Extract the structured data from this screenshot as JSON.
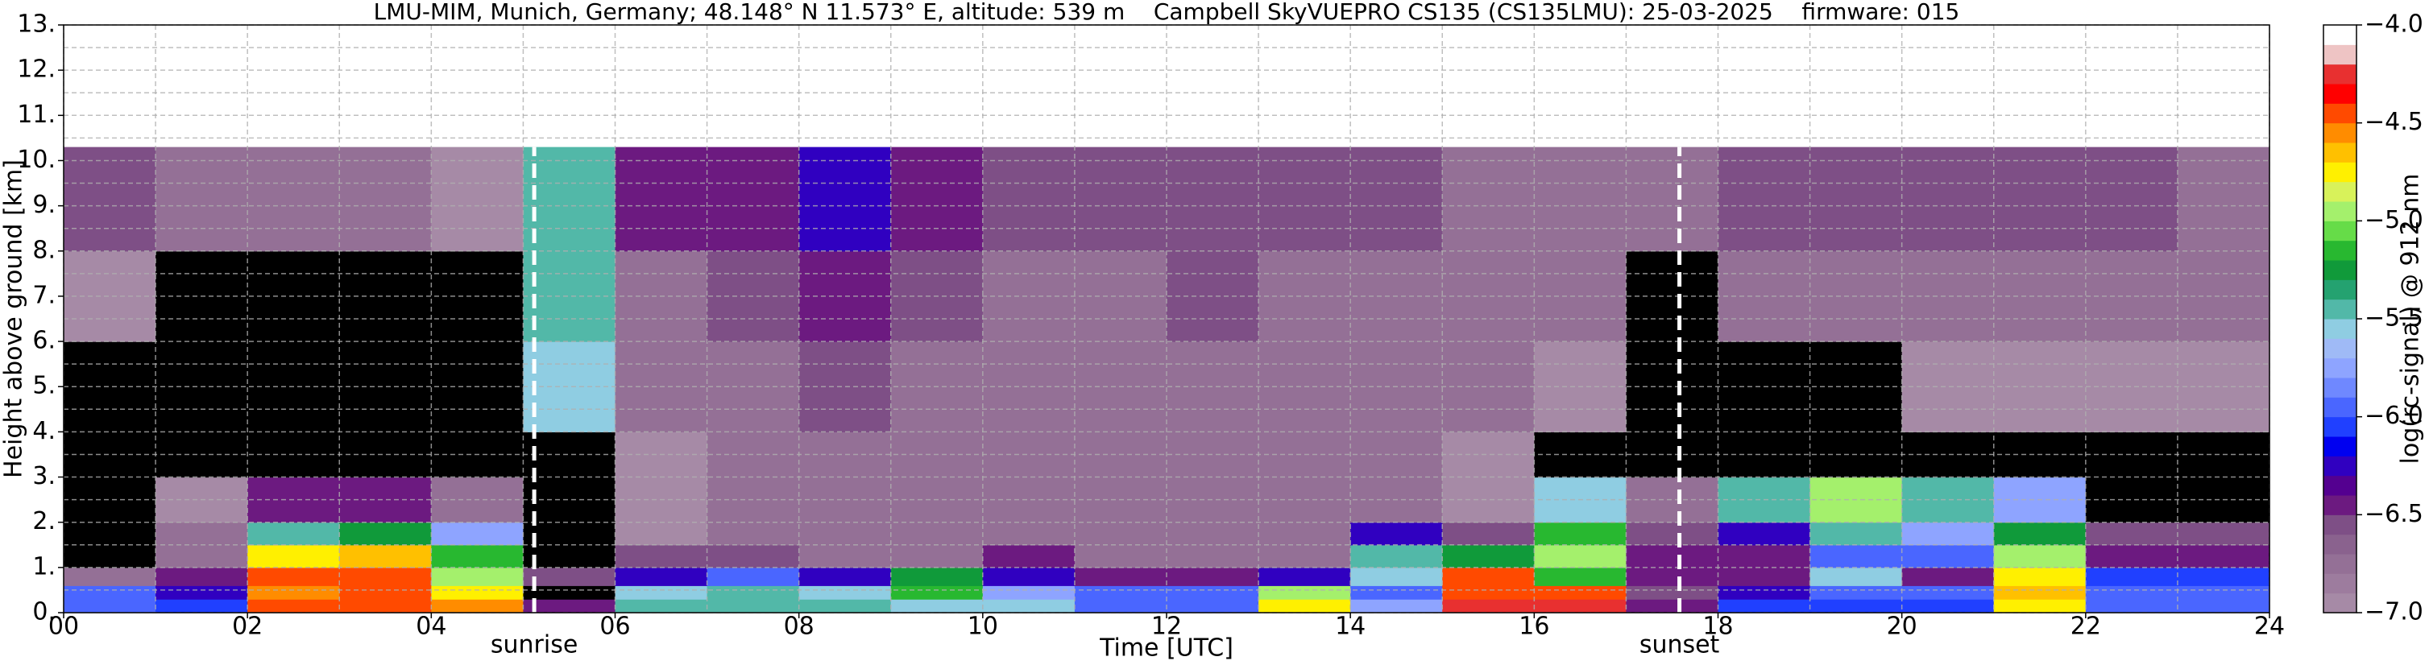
{
  "chart_data": {
    "type": "heatmap",
    "title": "LMU-MIM, Munich, Germany; 48.148° N 11.573° E, altitude: 539 m    Campbell SkyVUEPRO CS135 (CS135LMU): 25-03-2025    firmware: 015",
    "xlabel": "Time [UTC]",
    "ylabel": "Height above ground [km]",
    "xlim": [
      0,
      24
    ],
    "ylim": [
      0,
      13
    ],
    "xticks": [
      {
        "value": 0,
        "label": "00"
      },
      {
        "value": 2,
        "label": "02"
      },
      {
        "value": 4,
        "label": "04"
      },
      {
        "value": 6,
        "label": "06"
      },
      {
        "value": 8,
        "label": "08"
      },
      10,
      12,
      14,
      16,
      18,
      20,
      22,
      24
    ],
    "yticks": [
      {
        "value": 0,
        "label": "0."
      },
      {
        "value": 1,
        "label": "1."
      },
      {
        "value": 2,
        "label": "2."
      },
      {
        "value": 3,
        "label": "3."
      },
      {
        "value": 4,
        "label": "4."
      },
      {
        "value": 5,
        "label": "5."
      },
      {
        "value": 6,
        "label": "6."
      },
      {
        "value": 7,
        "label": "7."
      },
      {
        "value": 8,
        "label": "8."
      },
      {
        "value": 9,
        "label": "9."
      },
      {
        "value": 10,
        "label": "10."
      },
      {
        "value": 11,
        "label": "11."
      },
      {
        "value": 12,
        "label": "12."
      },
      {
        "value": 13,
        "label": "13."
      }
    ],
    "x_minor_grid": [
      1,
      3,
      5,
      7,
      9,
      11,
      13,
      15,
      17,
      19,
      21,
      23
    ],
    "y_minor_grid": [
      0.5,
      1.5,
      2.5,
      3.5,
      4.5,
      5.5,
      6.5,
      7.5,
      8.5,
      9.5,
      10.5,
      11.5,
      12.5
    ],
    "grid": true,
    "x_edges": [
      0,
      1,
      2,
      3,
      4,
      5,
      6,
      7,
      8,
      9,
      10,
      11,
      12,
      13,
      14,
      15,
      16,
      17,
      18,
      19,
      20,
      21,
      22,
      23,
      24
    ],
    "y_edges": [
      0,
      0.3,
      0.6,
      1.0,
      1.5,
      2.0,
      3.0,
      4.0,
      6.0,
      8.0,
      10.3
    ],
    "z": [
      [
        -6.0,
        -6.1,
        -4.5,
        -4.4,
        -4.6,
        -6.5,
        -5.4,
        -5.4,
        -5.5,
        -5.6,
        -5.6,
        -6.0,
        -6.0,
        -4.8,
        -5.8,
        -4.3,
        -4.3,
        -6.4,
        -6.1,
        -6.1,
        -6.1,
        -4.8,
        -6.0,
        -6.0
      ],
      [
        -6.0,
        -6.2,
        -4.6,
        -4.4,
        -4.8,
        -7.5,
        -5.6,
        -5.5,
        -5.6,
        -5.2,
        -5.8,
        -6.0,
        -6.0,
        -4.9,
        -5.9,
        -4.4,
        -4.5,
        -6.6,
        -6.3,
        -5.9,
        -6.0,
        -4.7,
        -6.0,
        -6.0
      ],
      [
        -6.7,
        -6.5,
        -4.5,
        -4.5,
        -4.9,
        -6.6,
        -6.2,
        -6.0,
        -6.2,
        -5.3,
        -6.2,
        -6.4,
        -6.4,
        -6.3,
        -5.6,
        -4.5,
        -5.2,
        -6.5,
        -6.5,
        -5.6,
        -6.4,
        -4.8,
        -6.1,
        -6.1
      ],
      [
        -7.5,
        -6.8,
        -4.8,
        -4.7,
        -5.2,
        -7.3,
        -6.6,
        -6.6,
        -6.7,
        -6.7,
        -6.5,
        -6.8,
        -6.8,
        -6.8,
        -5.5,
        -5.3,
        -5.0,
        -6.5,
        -6.4,
        -5.9,
        -6.0,
        -5.0,
        -6.5,
        -6.5
      ],
      [
        -7.5,
        -6.7,
        -5.5,
        -5.3,
        -5.8,
        -7.5,
        -6.9,
        -6.8,
        -6.8,
        -6.8,
        -6.7,
        -6.8,
        -6.8,
        -6.8,
        -6.2,
        -6.6,
        -5.2,
        -6.6,
        -6.3,
        -5.5,
        -5.8,
        -5.3,
        -6.6,
        -6.6
      ],
      [
        -7.5,
        -6.9,
        -6.5,
        -6.4,
        -6.8,
        -7.5,
        -6.9,
        -6.8,
        -6.8,
        -6.8,
        -6.8,
        -6.8,
        -6.8,
        -6.8,
        -6.8,
        -6.9,
        -5.6,
        -6.8,
        -5.5,
        -5.0,
        -5.5,
        -5.8,
        -7.5,
        -7.5
      ],
      [
        -7.5,
        -7.5,
        -7.5,
        -7.5,
        -7.5,
        -7.3,
        -6.9,
        -6.8,
        -6.8,
        -6.8,
        -6.8,
        -6.8,
        -6.8,
        -6.8,
        -6.8,
        -6.9,
        -7.3,
        -7.5,
        -7.5,
        -7.5,
        -7.5,
        -7.5,
        -7.5,
        -7.5
      ],
      [
        -7.5,
        -7.5,
        -7.5,
        -7.5,
        -7.4,
        -5.6,
        -6.8,
        -6.7,
        -6.6,
        -6.7,
        -6.8,
        -6.8,
        -6.7,
        -6.8,
        -6.8,
        -6.8,
        -6.9,
        -7.5,
        -7.1,
        -7.1,
        -7.0,
        -7.0,
        -7.0,
        -7.0
      ],
      [
        -7.0,
        -7.2,
        -7.3,
        -7.5,
        -7.3,
        -5.4,
        -6.7,
        -6.6,
        -6.4,
        -6.6,
        -6.7,
        -6.7,
        -6.6,
        -6.7,
        -6.7,
        -6.8,
        -6.8,
        -7.2,
        -6.8,
        -6.8,
        -6.8,
        -6.8,
        -6.8,
        -6.8
      ],
      [
        -6.6,
        -6.7,
        -6.8,
        -6.7,
        -6.9,
        -5.5,
        -6.5,
        -6.4,
        -6.2,
        -6.5,
        -6.6,
        -6.6,
        -6.6,
        -6.6,
        -6.6,
        -6.7,
        -6.7,
        -6.8,
        -6.6,
        -6.6,
        -6.6,
        -6.6,
        -6.6,
        -6.7
      ]
    ],
    "clim": [
      -7,
      -4
    ],
    "under_color": "#000000",
    "colors": [
      "#a68aa6",
      "#9d7c9e",
      "#947096",
      "#8a628e",
      "#7e4f86",
      "#6c1a80",
      "#540090",
      "#3000c0",
      "#0000f0",
      "#2040ff",
      "#4a66ff",
      "#6f88ff",
      "#8ea4ff",
      "#9fbaf6",
      "#8fcde2",
      "#52b8a8",
      "#24a270",
      "#109a3a",
      "#28b830",
      "#66dc48",
      "#a4f06c",
      "#d8f25a",
      "#fff000",
      "#ffc000",
      "#ff8c00",
      "#ff4a00",
      "#ff0000",
      "#e83030",
      "#eec4c4",
      "#ffffff"
    ],
    "colorbar_label": "log(rc-signal) @ 912 nm",
    "colorbar_ticks": [
      {
        "value": -7.0,
        "label": "−7.0"
      },
      {
        "value": -6.5,
        "label": "−6.5"
      },
      {
        "value": -6.0,
        "label": "−6.0"
      },
      {
        "value": -5.5,
        "label": "−5.5"
      },
      {
        "value": -5.0,
        "label": "−5.0"
      },
      {
        "value": -4.5,
        "label": "−4.5"
      },
      {
        "value": -4.0,
        "label": "−4.0"
      }
    ],
    "annotations": [
      {
        "x": 5.12,
        "label": "sunrise"
      },
      {
        "x": 17.58,
        "label": "sunset"
      }
    ]
  }
}
